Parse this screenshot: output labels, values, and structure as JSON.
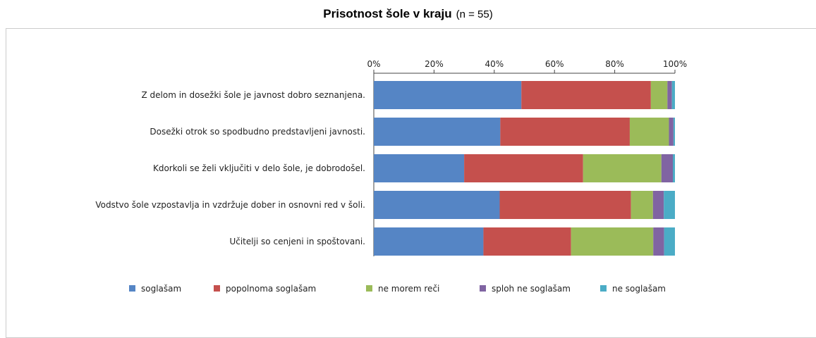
{
  "chart_data": {
    "type": "stacked-barh",
    "title": "Prisotnost šole v kraju",
    "subtitle": "(n = 55)",
    "categories": [
      "Z delom in dosežki šole je javnost dobro seznanjena.",
      "Dosežki otrok so spodbudno predstavljeni javnosti.",
      "Kdorkoli se želi vključiti v delo šole, je dobrodošel.",
      "Vodstvo šole vzpostavlja in vzdržuje dober in osnovni red v šoli.",
      "Učitelji so cenjeni in spoštovani."
    ],
    "series": [
      {
        "name": "soglašam",
        "color": "#5585c5",
        "values": [
          49,
          42,
          30,
          41.8,
          36.4
        ]
      },
      {
        "name": "popolnoma soglašam",
        "color": "#c5504d",
        "values": [
          43,
          43,
          39.5,
          43.6,
          29.1
        ]
      },
      {
        "name": "ne morem reči",
        "color": "#9bbb59",
        "values": [
          5.5,
          13,
          26,
          7.3,
          27.3
        ]
      },
      {
        "name": "sploh ne soglašam",
        "color": "#8064a2",
        "values": [
          1.5,
          1.5,
          3.8,
          3.6,
          3.6
        ]
      },
      {
        "name": "ne soglašam",
        "color": "#4bacc6",
        "values": [
          1,
          0.5,
          0.7,
          3.7,
          3.6
        ]
      }
    ],
    "xlim": [
      0,
      100
    ],
    "xticks": [
      {
        "value": 0,
        "label": "0%"
      },
      {
        "value": 20,
        "label": "20%"
      },
      {
        "value": 40,
        "label": "40%"
      },
      {
        "value": 60,
        "label": "60%"
      },
      {
        "value": 80,
        "label": "80%"
      },
      {
        "value": 100,
        "label": "100%"
      }
    ],
    "legend": "bottom"
  }
}
